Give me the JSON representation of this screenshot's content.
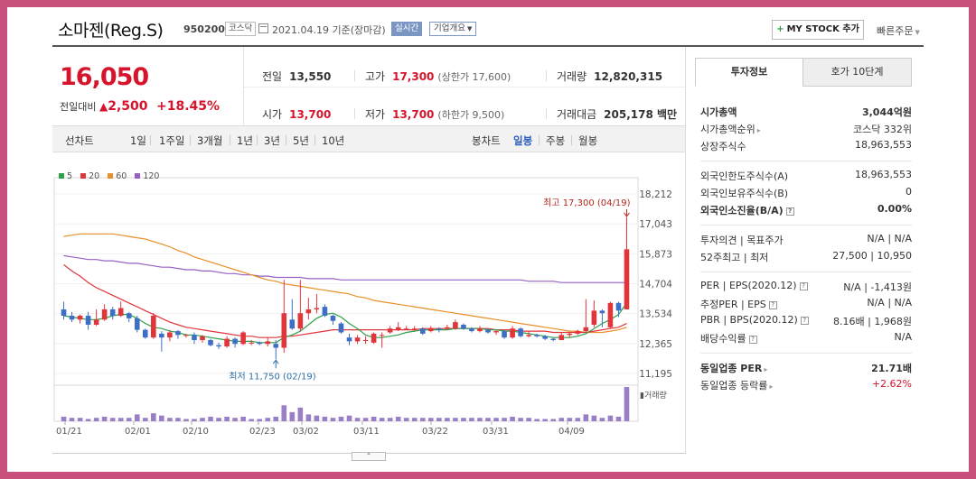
{
  "header": {
    "name": "소마젠(Reg.S)",
    "code": "950200",
    "market": "코스닥",
    "date": "2021.04.19 기준(장마감)",
    "realtime": "실시간",
    "corp_info": "기업개요",
    "mystock": "MY STOCK 추가",
    "quick_order": "빠른주문"
  },
  "price": {
    "current": "16,050",
    "change_label": "전일대비",
    "change": "2,500",
    "rate": "+18.45%"
  },
  "stats": {
    "prev_label": "전일",
    "prev": "13,550",
    "high_label": "고가",
    "high": "17,300",
    "upper_limit": "(상한가 17,600)",
    "volume_label": "거래량",
    "volume": "12,820,315",
    "open_label": "시가",
    "open": "13,700",
    "low_label": "저가",
    "low": "13,700",
    "lower_limit": "(하한가 9,500)",
    "amount_label": "거래대금",
    "amount": "205,178 백만"
  },
  "tabs": {
    "line_chart": "선차트",
    "periods": [
      "1일",
      "1주일",
      "3개월",
      "1년",
      "3년",
      "5년",
      "10년"
    ],
    "candle_chart": "봉차트",
    "candles": [
      "일봉",
      "주봉",
      "월봉"
    ],
    "selected_candle": "일봉"
  },
  "legend": [
    {
      "label": "5",
      "color": "#2ea04a"
    },
    {
      "label": "20",
      "color": "#e0353b"
    },
    {
      "label": "60",
      "color": "#e8902a"
    },
    {
      "label": "120",
      "color": "#9561c4"
    }
  ],
  "chart_data": {
    "type": "candlestick",
    "y_ticks": [
      "18,212",
      "17,043",
      "15,873",
      "14,704",
      "13,534",
      "12,365",
      "11,195"
    ],
    "ylim": [
      11195,
      18212
    ],
    "x_ticks": [
      "01/21",
      "02/01",
      "02/10",
      "02/23",
      "03/02",
      "03/11",
      "03/22",
      "03/31",
      "04/09"
    ],
    "high_annotation": "최고 17,300 (04/19)",
    "low_annotation": "최저 11,750 (02/19)",
    "volume_label": "거래량",
    "up_color": "#e0353b",
    "down_color": "#3d6fc6",
    "candles": [
      {
        "o": 13700,
        "c": 13450,
        "h": 14000,
        "l": 13300
      },
      {
        "o": 13450,
        "c": 13300,
        "h": 13600,
        "l": 13200
      },
      {
        "o": 13300,
        "c": 13450,
        "h": 13500,
        "l": 13150
      },
      {
        "o": 13450,
        "c": 13100,
        "h": 13600,
        "l": 12900
      },
      {
        "o": 13100,
        "c": 13300,
        "h": 13700,
        "l": 13050
      },
      {
        "o": 13300,
        "c": 13700,
        "h": 13900,
        "l": 13250
      },
      {
        "o": 13700,
        "c": 13450,
        "h": 13800,
        "l": 13300
      },
      {
        "o": 13450,
        "c": 13750,
        "h": 14000,
        "l": 13400
      },
      {
        "o": 13550,
        "c": 13350,
        "h": 13600,
        "l": 13200
      },
      {
        "o": 13350,
        "c": 12900,
        "h": 13450,
        "l": 12800
      },
      {
        "o": 12900,
        "c": 12600,
        "h": 12950,
        "l": 12550
      },
      {
        "o": 12600,
        "c": 13450,
        "h": 13550,
        "l": 12550
      },
      {
        "o": 12750,
        "c": 12600,
        "h": 12850,
        "l": 12050
      },
      {
        "o": 12600,
        "c": 12800,
        "h": 12900,
        "l": 12450
      },
      {
        "o": 12850,
        "c": 12700,
        "h": 12900,
        "l": 12550
      },
      {
        "o": 12700,
        "c": 12700,
        "h": 12750,
        "l": 12600
      },
      {
        "o": 12700,
        "c": 12500,
        "h": 12800,
        "l": 12350
      },
      {
        "o": 12500,
        "c": 12650,
        "h": 12700,
        "l": 12400
      },
      {
        "o": 12500,
        "c": 12300,
        "h": 12550,
        "l": 12250
      },
      {
        "o": 12300,
        "c": 12250,
        "h": 12400,
        "l": 12150
      },
      {
        "o": 12250,
        "c": 12550,
        "h": 12650,
        "l": 12200
      },
      {
        "o": 12550,
        "c": 12350,
        "h": 12600,
        "l": 12200
      },
      {
        "o": 12350,
        "c": 12800,
        "h": 12850,
        "l": 12300
      },
      {
        "o": 12400,
        "c": 12400,
        "h": 12500,
        "l": 12300
      },
      {
        "o": 12400,
        "c": 12350,
        "h": 12450,
        "l": 12300
      },
      {
        "o": 12350,
        "c": 12450,
        "h": 12600,
        "l": 12250
      },
      {
        "o": 12350,
        "c": 12200,
        "h": 12500,
        "l": 11750
      },
      {
        "o": 12200,
        "c": 13550,
        "h": 14850,
        "l": 12000
      },
      {
        "o": 13300,
        "c": 12950,
        "h": 14100,
        "l": 12900
      },
      {
        "o": 12950,
        "c": 13550,
        "h": 14850,
        "l": 12850
      },
      {
        "o": 13550,
        "c": 13700,
        "h": 14150,
        "l": 13300
      },
      {
        "o": 13700,
        "c": 13750,
        "h": 14300,
        "l": 13550
      },
      {
        "o": 13800,
        "c": 13450,
        "h": 13900,
        "l": 13400
      },
      {
        "o": 13450,
        "c": 13250,
        "h": 13500,
        "l": 13100
      },
      {
        "o": 13150,
        "c": 12800,
        "h": 13200,
        "l": 12750
      },
      {
        "o": 12600,
        "c": 12450,
        "h": 12750,
        "l": 12300
      },
      {
        "o": 12450,
        "c": 12600,
        "h": 12700,
        "l": 12350
      },
      {
        "o": 12500,
        "c": 12500,
        "h": 12650,
        "l": 12350
      },
      {
        "o": 12400,
        "c": 12750,
        "h": 12800,
        "l": 12350
      },
      {
        "o": 12700,
        "c": 12700,
        "h": 12800,
        "l": 12200
      },
      {
        "o": 12800,
        "c": 12950,
        "h": 13050,
        "l": 12750
      },
      {
        "o": 12900,
        "c": 13000,
        "h": 13200,
        "l": 12850
      },
      {
        "o": 12950,
        "c": 12950,
        "h": 13050,
        "l": 12900
      },
      {
        "o": 12950,
        "c": 12950,
        "h": 13050,
        "l": 12850
      },
      {
        "o": 12950,
        "c": 12750,
        "h": 13000,
        "l": 12700
      },
      {
        "o": 12850,
        "c": 12950,
        "h": 13050,
        "l": 12800
      },
      {
        "o": 12950,
        "c": 12900,
        "h": 13000,
        "l": 12800
      },
      {
        "o": 12950,
        "c": 13000,
        "h": 13100,
        "l": 12900
      },
      {
        "o": 12950,
        "c": 13200,
        "h": 13300,
        "l": 12900
      },
      {
        "o": 13100,
        "c": 12950,
        "h": 13150,
        "l": 12900
      },
      {
        "o": 12950,
        "c": 12850,
        "h": 13000,
        "l": 12800
      },
      {
        "o": 12850,
        "c": 12950,
        "h": 13050,
        "l": 12800
      },
      {
        "o": 12900,
        "c": 12800,
        "h": 12950,
        "l": 12750
      },
      {
        "o": 12800,
        "c": 12850,
        "h": 12900,
        "l": 12700
      },
      {
        "o": 12850,
        "c": 12600,
        "h": 12900,
        "l": 12550
      },
      {
        "o": 12600,
        "c": 12950,
        "h": 13050,
        "l": 12550
      },
      {
        "o": 12950,
        "c": 12650,
        "h": 13000,
        "l": 12600
      },
      {
        "o": 12650,
        "c": 12700,
        "h": 12850,
        "l": 12600
      },
      {
        "o": 12700,
        "c": 12650,
        "h": 12750,
        "l": 12600
      },
      {
        "o": 12650,
        "c": 12550,
        "h": 12700,
        "l": 12500
      },
      {
        "o": 12550,
        "c": 12500,
        "h": 12600,
        "l": 12450
      },
      {
        "o": 12500,
        "c": 12700,
        "h": 12800,
        "l": 12500
      },
      {
        "o": 12700,
        "c": 12750,
        "h": 12800,
        "l": 12600
      },
      {
        "o": 12750,
        "c": 12850,
        "h": 12900,
        "l": 12700
      },
      {
        "o": 12850,
        "c": 13000,
        "h": 14100,
        "l": 12800
      },
      {
        "o": 13100,
        "c": 13650,
        "h": 14050,
        "l": 13000
      },
      {
        "o": 13650,
        "c": 13550,
        "h": 13700,
        "l": 13000
      },
      {
        "o": 13000,
        "c": 13950,
        "h": 14000,
        "l": 12950
      },
      {
        "o": 13950,
        "c": 13650,
        "h": 14000,
        "l": 13400
      },
      {
        "o": 13700,
        "c": 16050,
        "h": 17300,
        "l": 13700
      }
    ],
    "volume": [
      4,
      3,
      3,
      2,
      3,
      4,
      3,
      3,
      3,
      6,
      3,
      7,
      5,
      3,
      3,
      2,
      2,
      3,
      4,
      3,
      4,
      3,
      4,
      2,
      2,
      3,
      4,
      14,
      8,
      12,
      6,
      5,
      4,
      3,
      4,
      5,
      3,
      3,
      4,
      3,
      3,
      4,
      3,
      3,
      3,
      3,
      3,
      3,
      3,
      3,
      3,
      3,
      3,
      3,
      3,
      4,
      3,
      3,
      2,
      2,
      2,
      3,
      3,
      3,
      6,
      5,
      3,
      5,
      4,
      30
    ],
    "ma5": [
      13450,
      13400,
      13350,
      13300,
      13300,
      13350,
      13450,
      13500,
      13500,
      13350,
      13150,
      13000,
      12950,
      12850,
      12800,
      12700,
      12700,
      12650,
      12600,
      12550,
      12500,
      12450,
      12450,
      12450,
      12400,
      12400,
      12400,
      12600,
      12700,
      12850,
      13100,
      13350,
      13500,
      13550,
      13400,
      13150,
      12950,
      12700,
      12600,
      12600,
      12650,
      12700,
      12800,
      12850,
      12900,
      12900,
      12900,
      12900,
      12950,
      12950,
      12950,
      12950,
      12900,
      12900,
      12850,
      12850,
      12800,
      12750,
      12700,
      12650,
      12600,
      12600,
      12600,
      12650,
      12750,
      12950,
      13150,
      13300,
      13500,
      13950
    ],
    "ma20": [
      15450,
      15200,
      15000,
      14750,
      14550,
      14400,
      14250,
      14100,
      13950,
      13800,
      13650,
      13500,
      13350,
      13200,
      13100,
      13000,
      12950,
      12900,
      12850,
      12800,
      12750,
      12700,
      12650,
      12650,
      12600,
      12600,
      12600,
      12650,
      12650,
      12700,
      12750,
      12800,
      12850,
      12900,
      12900,
      12900,
      12900,
      12900,
      12900,
      12900,
      12900,
      12900,
      12900,
      12900,
      12950,
      12950,
      12950,
      12950,
      12950,
      12950,
      12950,
      12950,
      12950,
      12900,
      12900,
      12900,
      12850,
      12850,
      12850,
      12850,
      12800,
      12800,
      12800,
      12800,
      12800,
      12850,
      12900,
      12950,
      13000,
      13150
    ],
    "ma60": [
      16550,
      16600,
      16650,
      16650,
      16650,
      16650,
      16650,
      16600,
      16550,
      16500,
      16450,
      16350,
      16250,
      16150,
      16000,
      15900,
      15750,
      15650,
      15550,
      15450,
      15350,
      15250,
      15150,
      15050,
      14950,
      14850,
      14800,
      14700,
      14650,
      14600,
      14550,
      14500,
      14450,
      14400,
      14350,
      14300,
      14200,
      14150,
      14050,
      14000,
      13950,
      13900,
      13850,
      13800,
      13750,
      13700,
      13650,
      13600,
      13550,
      13500,
      13450,
      13400,
      13350,
      13300,
      13250,
      13200,
      13150,
      13100,
      13050,
      13000,
      12950,
      12900,
      12850,
      12850,
      12800,
      12800,
      12800,
      12850,
      12900,
      13000
    ],
    "ma120": [
      15800,
      15750,
      15700,
      15650,
      15650,
      15600,
      15600,
      15550,
      15500,
      15500,
      15450,
      15400,
      15350,
      15350,
      15300,
      15250,
      15250,
      15200,
      15200,
      15150,
      15100,
      15100,
      15050,
      15050,
      15000,
      15000,
      14950,
      14950,
      14950,
      14950,
      14900,
      14900,
      14900,
      14900,
      14850,
      14850,
      14850,
      14850,
      14850,
      14850,
      14850,
      14850,
      14850,
      14850,
      14850,
      14850,
      14850,
      14850,
      14850,
      14850,
      14850,
      14850,
      14850,
      14850,
      14850,
      14850,
      14850,
      14800,
      14800,
      14800,
      14800,
      14750,
      14750,
      14750,
      14750,
      14750,
      14750,
      14750,
      14750,
      14750
    ]
  },
  "panel": {
    "tab1": "투자정보",
    "tab2": "호가 10단계",
    "market_cap_label": "시가총액",
    "market_cap": "3,044억원",
    "cap_rank_label": "시가총액순위",
    "cap_rank": "코스닥 332위",
    "shares_label": "상장주식수",
    "shares": "18,963,553",
    "foreign_limit_label": "외국인한도주식수(A)",
    "foreign_limit": "18,963,553",
    "foreign_hold_label": "외국인보유주식수(B)",
    "foreign_hold": "0",
    "foreign_ratio_label": "외국인소진율(B/A)",
    "foreign_ratio": "0.00%",
    "opinion_label": "투자의견",
    "target_label": "목표주가",
    "opinion": "N/A",
    "target": "N/A",
    "high52_label": "52주최고",
    "low52_label": "최저",
    "high52": "27,500",
    "low52": "10,950",
    "per_label": "PER",
    "eps_label": "EPS(2020.12)",
    "per": "N/A",
    "eps": "-1,413원",
    "est_per_label": "추정PER",
    "est_eps_label": "EPS",
    "est_per": "N/A",
    "est_eps": "N/A",
    "pbr_label": "PBR",
    "bps_label": "BPS(2020.12)",
    "pbr": "8.16배",
    "bps": "1,968원",
    "div_label": "배당수익률",
    "div": "N/A",
    "sector_per_label": "동일업종 PER",
    "sector_per": "21.71배",
    "sector_rate_label": "동일업종 등락률",
    "sector_rate": "+2.62%"
  }
}
